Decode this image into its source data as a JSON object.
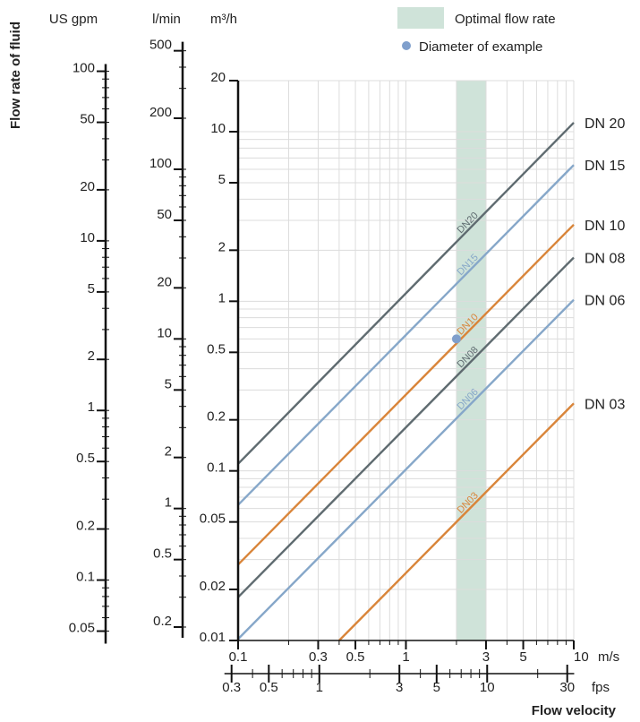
{
  "chart_data": {
    "type": "line",
    "y_axis_title": "Flow rate of fluid",
    "x_axis_title": "Flow velocity",
    "x_scale": "log",
    "y_scale": "log",
    "xlim": [
      0.1,
      10
    ],
    "ylim": [
      0.01,
      20
    ],
    "grid": true,
    "legend_position": "top-right",
    "legend": {
      "band_label": "Optimal flow rate",
      "point_label": "Diameter of example"
    },
    "optimal_band_ms": [
      2,
      3
    ],
    "example_point": {
      "x": 2,
      "y": 0.6
    },
    "axes": {
      "usgpm": {
        "unit": "US gpm",
        "ticks": [
          "100",
          "50",
          "20",
          "10",
          "5",
          "2",
          "1",
          "0.5",
          "0.2",
          "0.1",
          "0.05"
        ],
        "values": [
          100,
          50,
          20,
          10,
          5,
          2,
          1,
          0.5,
          0.2,
          0.1,
          0.05
        ]
      },
      "lmin": {
        "unit": "l/min",
        "ticks": [
          "500",
          "200",
          "100",
          "50",
          "20",
          "10",
          "5",
          "2",
          "1",
          "0.5",
          "0.2"
        ],
        "values": [
          500,
          200,
          100,
          50,
          20,
          10,
          5,
          2,
          1,
          0.5,
          0.2
        ]
      },
      "m3h": {
        "unit": "m³/h",
        "ticks": [
          "20",
          "10",
          "5",
          "2",
          "1",
          "0.5",
          "0.2",
          "0.1",
          "0.05",
          "0.02",
          "0.01"
        ],
        "values": [
          20,
          10,
          5,
          2,
          1,
          0.5,
          0.2,
          0.1,
          0.05,
          0.02,
          0.01
        ]
      },
      "ms": {
        "unit": "m/s",
        "ticks": [
          "0.1",
          "0.3",
          "0.5",
          "1",
          "3",
          "5",
          "10"
        ],
        "values": [
          0.1,
          0.3,
          0.5,
          1,
          3,
          5,
          10
        ]
      },
      "fps": {
        "unit": "fps",
        "ticks": [
          "0.3",
          "0.5",
          "1",
          "3",
          "5",
          "10",
          "30"
        ],
        "values": [
          0.3,
          0.5,
          1,
          3,
          5,
          10,
          30
        ]
      }
    },
    "series": [
      {
        "name": "DN 20",
        "inline_label": "DN20",
        "color": "#5f6b70",
        "points": [
          [
            0.1,
            0.11
          ],
          [
            10,
            11.3
          ]
        ]
      },
      {
        "name": "DN 15",
        "inline_label": "DN15",
        "color": "#86a7c9",
        "points": [
          [
            0.1,
            0.063
          ],
          [
            10,
            6.36
          ]
        ]
      },
      {
        "name": "DN 10",
        "inline_label": "DN10",
        "color": "#d9853a",
        "points": [
          [
            0.1,
            0.028
          ],
          [
            10,
            2.83
          ]
        ]
      },
      {
        "name": "DN 08",
        "inline_label": "DN08",
        "color": "#5f6b70",
        "points": [
          [
            0.1,
            0.018
          ],
          [
            10,
            1.81
          ]
        ]
      },
      {
        "name": "DN 06",
        "inline_label": "DN06",
        "color": "#86a7c9",
        "points": [
          [
            0.1,
            0.0102
          ],
          [
            10,
            1.02
          ]
        ]
      },
      {
        "name": "DN 03",
        "inline_label": "DN03",
        "color": "#d9853a",
        "points": [
          [
            0.4,
            0.01
          ],
          [
            10,
            0.25
          ]
        ]
      }
    ],
    "colors": {
      "axis": "#111111",
      "grid": "#dcdcdc",
      "band": "#cfe3d9",
      "point": "#7f9fcc"
    }
  }
}
